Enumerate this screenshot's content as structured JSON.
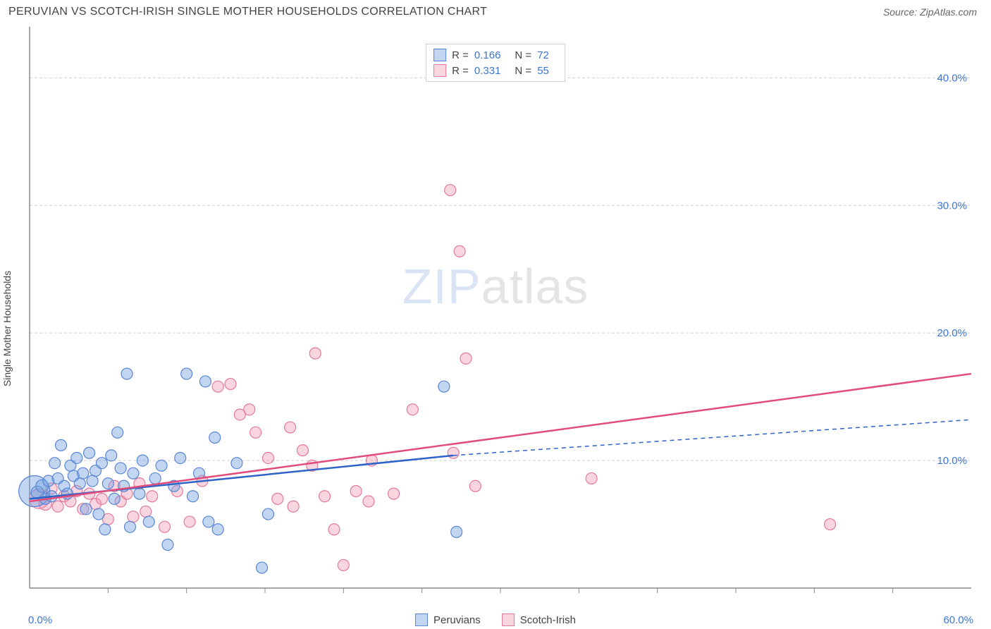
{
  "title": "PERUVIAN VS SCOTCH-IRISH SINGLE MOTHER HOUSEHOLDS CORRELATION CHART",
  "source_label": "Source: ZipAtlas.com",
  "y_axis_label": "Single Mother Households",
  "watermark": {
    "zip": "ZIP",
    "atlas": "atlas"
  },
  "chart": {
    "type": "scatter",
    "xlim": [
      0,
      60
    ],
    "ylim": [
      0,
      44
    ],
    "y_ticks": [
      10,
      20,
      30,
      40
    ],
    "y_tick_labels": [
      "10.0%",
      "20.0%",
      "30.0%",
      "40.0%"
    ],
    "x_tick_positions": [
      5,
      10,
      15,
      20,
      25,
      30,
      35,
      40,
      45,
      50,
      55
    ],
    "x_min_label": "0.0%",
    "x_max_label": "60.0%",
    "background_color": "#ffffff",
    "grid_color": "#d0d0d0",
    "axis_color": "#888888"
  },
  "series": {
    "peruvians": {
      "label": "Peruvians",
      "fill": "rgba(120,165,225,0.45)",
      "stroke": "#5a86d6",
      "trend_color": "#2e63c8",
      "R": "0.166",
      "N": "72",
      "trend": {
        "x1": 0,
        "y1": 7.0,
        "x2": 27,
        "y2": 10.4,
        "x2_dash": 60,
        "y2_dash": 13.2
      },
      "points": [
        {
          "x": 0.3,
          "y": 7.6,
          "r": 22
        },
        {
          "x": 0.5,
          "y": 7.5,
          "r": 9
        },
        {
          "x": 0.8,
          "y": 8.0,
          "r": 9
        },
        {
          "x": 1.0,
          "y": 7.0,
          "r": 8
        },
        {
          "x": 1.2,
          "y": 8.4,
          "r": 8
        },
        {
          "x": 1.4,
          "y": 7.2,
          "r": 8
        },
        {
          "x": 1.6,
          "y": 9.8,
          "r": 8
        },
        {
          "x": 1.8,
          "y": 8.6,
          "r": 8
        },
        {
          "x": 2.0,
          "y": 11.2,
          "r": 8
        },
        {
          "x": 2.2,
          "y": 8.0,
          "r": 8
        },
        {
          "x": 2.4,
          "y": 7.4,
          "r": 8
        },
        {
          "x": 2.6,
          "y": 9.6,
          "r": 8
        },
        {
          "x": 2.8,
          "y": 8.8,
          "r": 8
        },
        {
          "x": 3.0,
          "y": 10.2,
          "r": 8
        },
        {
          "x": 3.2,
          "y": 8.2,
          "r": 8
        },
        {
          "x": 3.4,
          "y": 9.0,
          "r": 8
        },
        {
          "x": 3.6,
          "y": 6.2,
          "r": 8
        },
        {
          "x": 3.8,
          "y": 10.6,
          "r": 8
        },
        {
          "x": 4.0,
          "y": 8.4,
          "r": 8
        },
        {
          "x": 4.2,
          "y": 9.2,
          "r": 8
        },
        {
          "x": 4.4,
          "y": 5.8,
          "r": 8
        },
        {
          "x": 4.6,
          "y": 9.8,
          "r": 8
        },
        {
          "x": 4.8,
          "y": 4.6,
          "r": 8
        },
        {
          "x": 5.0,
          "y": 8.2,
          "r": 8
        },
        {
          "x": 5.2,
          "y": 10.4,
          "r": 8
        },
        {
          "x": 5.4,
          "y": 7.0,
          "r": 8
        },
        {
          "x": 5.6,
          "y": 12.2,
          "r": 8
        },
        {
          "x": 5.8,
          "y": 9.4,
          "r": 8
        },
        {
          "x": 6.0,
          "y": 8.0,
          "r": 8
        },
        {
          "x": 6.2,
          "y": 16.8,
          "r": 8
        },
        {
          "x": 6.4,
          "y": 4.8,
          "r": 8
        },
        {
          "x": 6.6,
          "y": 9.0,
          "r": 8
        },
        {
          "x": 7.0,
          "y": 7.4,
          "r": 8
        },
        {
          "x": 7.2,
          "y": 10.0,
          "r": 8
        },
        {
          "x": 7.6,
          "y": 5.2,
          "r": 8
        },
        {
          "x": 8.0,
          "y": 8.6,
          "r": 8
        },
        {
          "x": 8.4,
          "y": 9.6,
          "r": 8
        },
        {
          "x": 8.8,
          "y": 3.4,
          "r": 8
        },
        {
          "x": 9.2,
          "y": 8.0,
          "r": 8
        },
        {
          "x": 9.6,
          "y": 10.2,
          "r": 8
        },
        {
          "x": 10.0,
          "y": 16.8,
          "r": 8
        },
        {
          "x": 10.4,
          "y": 7.2,
          "r": 8
        },
        {
          "x": 10.8,
          "y": 9.0,
          "r": 8
        },
        {
          "x": 11.2,
          "y": 16.2,
          "r": 8
        },
        {
          "x": 11.4,
          "y": 5.2,
          "r": 8
        },
        {
          "x": 11.8,
          "y": 11.8,
          "r": 8
        },
        {
          "x": 12.0,
          "y": 4.6,
          "r": 8
        },
        {
          "x": 13.2,
          "y": 9.8,
          "r": 8
        },
        {
          "x": 14.8,
          "y": 1.6,
          "r": 8
        },
        {
          "x": 15.2,
          "y": 5.8,
          "r": 8
        },
        {
          "x": 26.4,
          "y": 15.8,
          "r": 8
        },
        {
          "x": 27.2,
          "y": 4.4,
          "r": 8
        }
      ]
    },
    "scotch_irish": {
      "label": "Scotch-Irish",
      "fill": "rgba(240,150,175,0.40)",
      "stroke": "#e57a9a",
      "trend_color": "#e14d7b",
      "R": "0.331",
      "N": "55",
      "trend": {
        "x1": 0,
        "y1": 6.8,
        "x2": 60,
        "y2": 16.8
      },
      "points": [
        {
          "x": 0.6,
          "y": 7.0,
          "r": 14
        },
        {
          "x": 1.0,
          "y": 6.6,
          "r": 9
        },
        {
          "x": 1.4,
          "y": 7.8,
          "r": 8
        },
        {
          "x": 1.8,
          "y": 6.4,
          "r": 8
        },
        {
          "x": 2.2,
          "y": 7.2,
          "r": 8
        },
        {
          "x": 2.6,
          "y": 6.8,
          "r": 8
        },
        {
          "x": 3.0,
          "y": 7.6,
          "r": 8
        },
        {
          "x": 3.4,
          "y": 6.2,
          "r": 8
        },
        {
          "x": 3.8,
          "y": 7.4,
          "r": 8
        },
        {
          "x": 4.2,
          "y": 6.6,
          "r": 8
        },
        {
          "x": 4.6,
          "y": 7.0,
          "r": 8
        },
        {
          "x": 5.0,
          "y": 5.4,
          "r": 8
        },
        {
          "x": 5.4,
          "y": 8.0,
          "r": 8
        },
        {
          "x": 5.8,
          "y": 6.8,
          "r": 8
        },
        {
          "x": 6.2,
          "y": 7.4,
          "r": 8
        },
        {
          "x": 6.6,
          "y": 5.6,
          "r": 8
        },
        {
          "x": 7.0,
          "y": 8.2,
          "r": 8
        },
        {
          "x": 7.4,
          "y": 6.0,
          "r": 8
        },
        {
          "x": 7.8,
          "y": 7.2,
          "r": 8
        },
        {
          "x": 8.6,
          "y": 4.8,
          "r": 8
        },
        {
          "x": 9.4,
          "y": 7.6,
          "r": 8
        },
        {
          "x": 10.2,
          "y": 5.2,
          "r": 8
        },
        {
          "x": 11.0,
          "y": 8.4,
          "r": 8
        },
        {
          "x": 12.0,
          "y": 15.8,
          "r": 8
        },
        {
          "x": 12.8,
          "y": 16.0,
          "r": 8
        },
        {
          "x": 13.4,
          "y": 13.6,
          "r": 8
        },
        {
          "x": 14.0,
          "y": 14.0,
          "r": 8
        },
        {
          "x": 14.4,
          "y": 12.2,
          "r": 8
        },
        {
          "x": 15.2,
          "y": 10.2,
          "r": 8
        },
        {
          "x": 15.8,
          "y": 7.0,
          "r": 8
        },
        {
          "x": 16.6,
          "y": 12.6,
          "r": 8
        },
        {
          "x": 16.8,
          "y": 6.4,
          "r": 8
        },
        {
          "x": 17.4,
          "y": 10.8,
          "r": 8
        },
        {
          "x": 18.0,
          "y": 9.6,
          "r": 8
        },
        {
          "x": 18.2,
          "y": 18.4,
          "r": 8
        },
        {
          "x": 18.8,
          "y": 7.2,
          "r": 8
        },
        {
          "x": 19.4,
          "y": 4.6,
          "r": 8
        },
        {
          "x": 20.0,
          "y": 1.8,
          "r": 8
        },
        {
          "x": 20.8,
          "y": 7.6,
          "r": 8
        },
        {
          "x": 21.6,
          "y": 6.8,
          "r": 8
        },
        {
          "x": 21.8,
          "y": 10.0,
          "r": 8
        },
        {
          "x": 23.2,
          "y": 7.4,
          "r": 8
        },
        {
          "x": 24.4,
          "y": 14.0,
          "r": 8
        },
        {
          "x": 26.8,
          "y": 31.2,
          "r": 8
        },
        {
          "x": 27.0,
          "y": 10.6,
          "r": 8
        },
        {
          "x": 27.4,
          "y": 26.4,
          "r": 8
        },
        {
          "x": 27.8,
          "y": 18.0,
          "r": 8
        },
        {
          "x": 28.4,
          "y": 8.0,
          "r": 8
        },
        {
          "x": 35.8,
          "y": 8.6,
          "r": 8
        },
        {
          "x": 51.0,
          "y": 5.0,
          "r": 8
        }
      ]
    }
  },
  "stats_labels": {
    "r": "R =",
    "n": "N ="
  },
  "legend": {
    "series1": "Peruvians",
    "series2": "Scotch-Irish"
  }
}
